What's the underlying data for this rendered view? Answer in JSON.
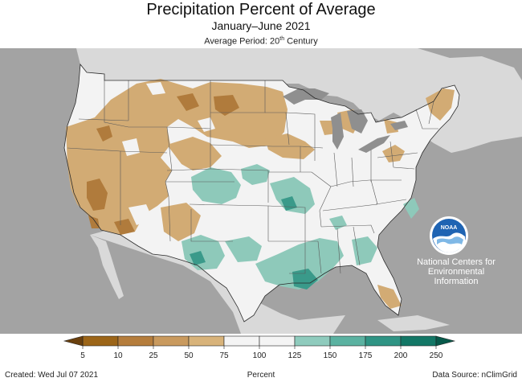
{
  "header": {
    "title": "Precipitation Percent of Average",
    "subtitle": "January–June 2021",
    "average_period": "Average Period: 20",
    "average_period_sup": "th",
    "average_period_suffix": " Century"
  },
  "noaa": {
    "logo_text": "NOAA",
    "org_line1": "National Centers for",
    "org_line2": "Environmental",
    "org_line3": "Information"
  },
  "legend": {
    "ticks": [
      "5",
      "10",
      "25",
      "50",
      "75",
      "100",
      "125",
      "150",
      "175",
      "200",
      "250"
    ],
    "colors": [
      "#9c6518",
      "#b57d3c",
      "#c99a5e",
      "#d8b37a",
      "#f4f4f4",
      "#f4f4f4",
      "#8fcbbd",
      "#5bb2a1",
      "#2f9484",
      "#137766"
    ],
    "end_low_color": "#6a400e",
    "end_high_color": "#07594a"
  },
  "footer": {
    "created": "Created: Wed Jul 07 2021",
    "units": "Percent",
    "source": "Data Source: nClimGrid"
  },
  "colors": {
    "background_gray": "#a3a3a3",
    "land_light": "#d9d9d9",
    "us_base": "#f3f3f3",
    "dry": "#d2ab74",
    "very_dry": "#b07b3c",
    "wet": "#8ec9ba",
    "very_wet": "#3a9a8a",
    "lakes": "#8f8f8f"
  }
}
